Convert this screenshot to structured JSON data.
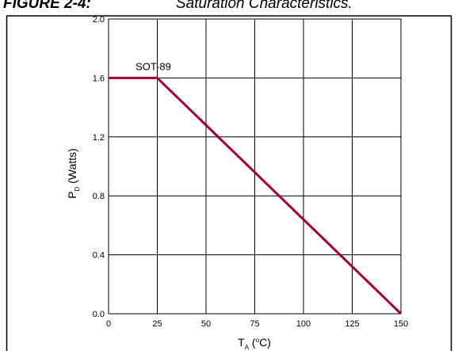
{
  "figure": {
    "label": "FIGURE 2-4:",
    "title": "Saturation Characteristics."
  },
  "chart_data": {
    "type": "line",
    "title": "",
    "xlabel": {
      "main": "T",
      "sub": "A",
      "unit_open": " (",
      "sup": "o",
      "unit_close": "C)"
    },
    "ylabel": {
      "main": "P",
      "sub": "D",
      "unit": " (Watts)"
    },
    "xlim": [
      0,
      150
    ],
    "ylim": [
      0.0,
      2.0
    ],
    "xticks": [
      0,
      25,
      50,
      75,
      100,
      125,
      150
    ],
    "xtick_labels": [
      "0",
      "25",
      "50",
      "75",
      "100",
      "125",
      "150"
    ],
    "yticks": [
      0.0,
      0.4,
      0.8,
      1.2,
      1.6,
      2.0
    ],
    "ytick_labels": [
      "0.0",
      "0.4",
      "0.8",
      "1.2",
      "1.6",
      "2.0"
    ],
    "grid": true,
    "series": [
      {
        "name": "SOT-89",
        "color": "#a00035",
        "x": [
          0,
          25,
          150
        ],
        "y": [
          1.6,
          1.6,
          0.0
        ]
      }
    ],
    "annotations": [
      {
        "text": "SOT-89",
        "x": 25,
        "y": 1.6
      }
    ]
  }
}
